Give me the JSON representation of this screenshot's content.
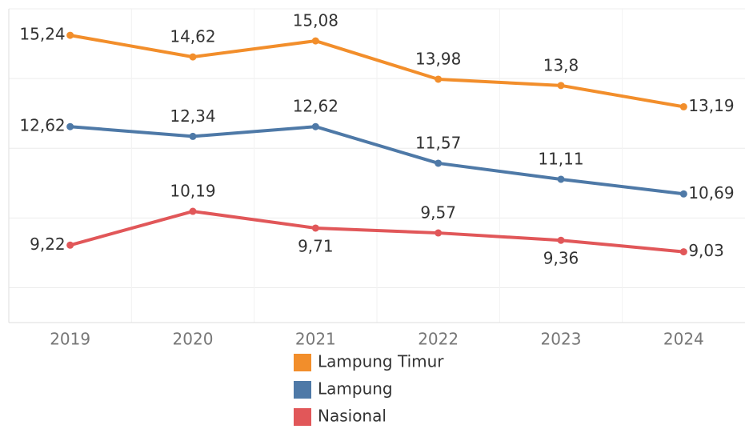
{
  "chart_data": {
    "type": "line",
    "categories": [
      "2019",
      "2020",
      "2021",
      "2022",
      "2023",
      "2024"
    ],
    "series": [
      {
        "name": "Lampung Timur",
        "color": "#f28e2b",
        "values": [
          15.24,
          14.62,
          15.08,
          13.98,
          13.8,
          13.19
        ],
        "value_labels": [
          "15,24",
          "14,62",
          "15,08",
          "13,98",
          "13,8",
          "13,19"
        ]
      },
      {
        "name": "Lampung",
        "color": "#4e79a7",
        "values": [
          12.62,
          12.34,
          12.62,
          11.57,
          11.11,
          10.69
        ],
        "value_labels": [
          "12,62",
          "12,34",
          "12,62",
          "11,57",
          "11,11",
          "10,69"
        ]
      },
      {
        "name": "Nasional",
        "color": "#e15759",
        "values": [
          9.22,
          10.19,
          9.71,
          9.57,
          9.36,
          9.03
        ],
        "value_labels": [
          "9,22",
          "10,19",
          "9,71",
          "9,57",
          "9,36",
          "9,03"
        ]
      }
    ],
    "ylim": [
      7,
      16
    ],
    "yticks": [
      8,
      10,
      12,
      14,
      16
    ],
    "grid": true
  }
}
